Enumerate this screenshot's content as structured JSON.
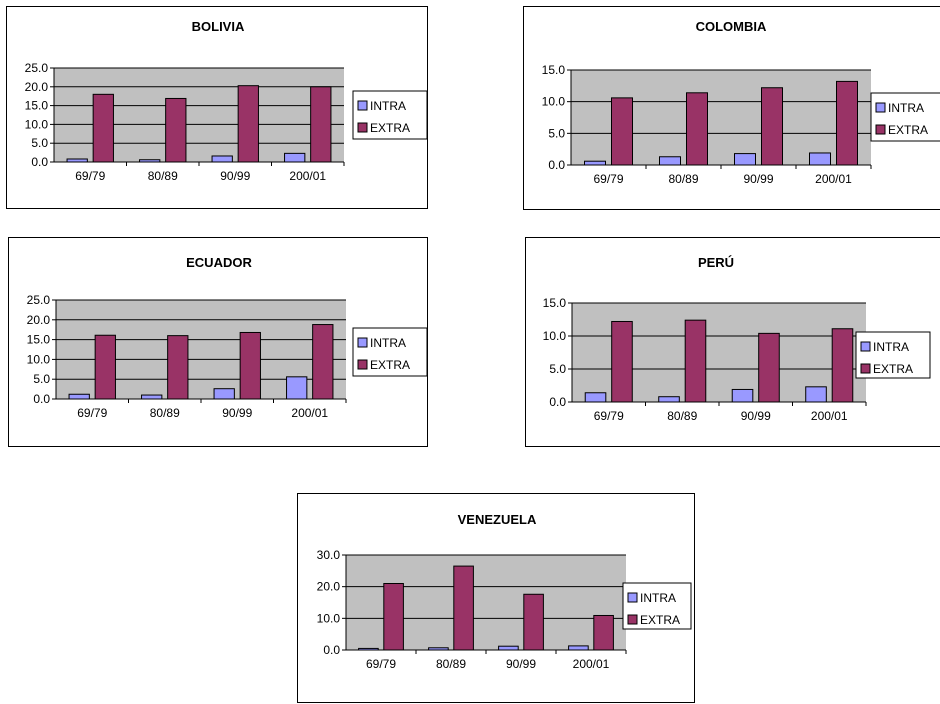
{
  "colors": {
    "intra": "#9999ff",
    "extra": "#993366",
    "plot_bg": "#c0c0c0"
  },
  "chart_data": [
    {
      "type": "bar",
      "title": "BOLIVIA",
      "categories": [
        "69/79",
        "80/89",
        "90/99",
        "200/01"
      ],
      "series": [
        {
          "name": "INTRA",
          "values": [
            0.8,
            0.6,
            1.6,
            2.3
          ]
        },
        {
          "name": "EXTRA",
          "values": [
            18.0,
            16.9,
            20.3,
            20.0
          ]
        }
      ],
      "yticks": [
        "0.0",
        "5.0",
        "10.0",
        "15.0",
        "20.0",
        "25.0"
      ],
      "ylim": [
        0,
        25
      ],
      "grid": true,
      "legend": "right"
    },
    {
      "type": "bar",
      "title": "COLOMBIA",
      "categories": [
        "69/79",
        "80/89",
        "90/99",
        "200/01"
      ],
      "series": [
        {
          "name": "INTRA",
          "values": [
            0.6,
            1.3,
            1.8,
            1.9
          ]
        },
        {
          "name": "EXTRA",
          "values": [
            10.6,
            11.4,
            12.2,
            13.2
          ]
        }
      ],
      "yticks": [
        "0.0",
        "5.0",
        "10.0",
        "15.0"
      ],
      "ylim": [
        0,
        15
      ],
      "grid": true,
      "legend": "right"
    },
    {
      "type": "bar",
      "title": "ECUADOR",
      "categories": [
        "69/79",
        "80/89",
        "90/99",
        "200/01"
      ],
      "series": [
        {
          "name": "INTRA",
          "values": [
            1.2,
            1.0,
            2.6,
            5.6
          ]
        },
        {
          "name": "EXTRA",
          "values": [
            16.1,
            16.0,
            16.8,
            18.8
          ]
        }
      ],
      "yticks": [
        "0.0",
        "5.0",
        "10.0",
        "15.0",
        "20.0",
        "25.0"
      ],
      "ylim": [
        0,
        25
      ],
      "grid": true,
      "legend": "right"
    },
    {
      "type": "bar",
      "title": "PERÚ",
      "categories": [
        "69/79",
        "80/89",
        "90/99",
        "200/01"
      ],
      "series": [
        {
          "name": "INTRA",
          "values": [
            1.4,
            0.8,
            1.9,
            2.3
          ]
        },
        {
          "name": "EXTRA",
          "values": [
            12.2,
            12.4,
            10.4,
            11.1
          ]
        }
      ],
      "yticks": [
        "0.0",
        "5.0",
        "10.0",
        "15.0"
      ],
      "ylim": [
        0,
        15
      ],
      "grid": true,
      "legend": "right"
    },
    {
      "type": "bar",
      "title": "VENEZUELA",
      "categories": [
        "69/79",
        "80/89",
        "90/99",
        "200/01"
      ],
      "series": [
        {
          "name": "INTRA",
          "values": [
            0.5,
            0.7,
            1.2,
            1.3
          ]
        },
        {
          "name": "EXTRA",
          "values": [
            21.0,
            26.5,
            17.6,
            10.9
          ]
        }
      ],
      "yticks": [
        "0.0",
        "10.0",
        "20.0",
        "30.0"
      ],
      "ylim": [
        0,
        30
      ],
      "grid": true,
      "legend": "right"
    }
  ]
}
